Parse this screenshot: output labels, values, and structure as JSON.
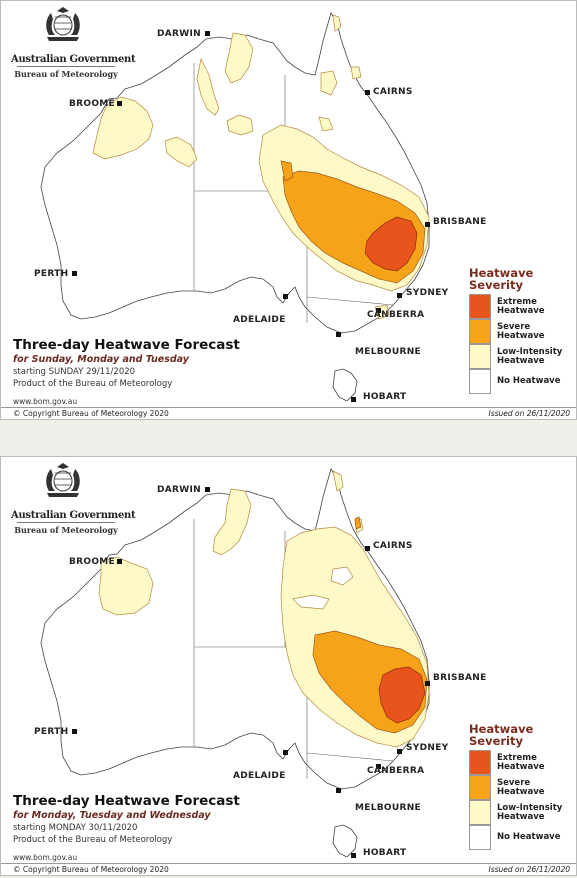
{
  "severity_colors": {
    "extreme": "#e8541c",
    "severe": "#f7a31a",
    "low": "#fdfac8",
    "none": "#ffffff"
  },
  "legend": {
    "title": "Heatwave Severity",
    "items": [
      {
        "key": "extreme",
        "label": "Extreme Heatwave",
        "color": "#e8541c"
      },
      {
        "key": "severe",
        "label": "Severe Heatwave",
        "color": "#f7a31a"
      },
      {
        "key": "low",
        "label": "Low-Intensity Heatwave",
        "color": "#fdfac8"
      },
      {
        "key": "none",
        "label": "No Heatwave",
        "color": "#ffffff"
      }
    ]
  },
  "branding": {
    "government": "Australian Government",
    "bureau": "Bureau of Meteorology",
    "crest_icon": "coat-of-arms-icon"
  },
  "cities": [
    "DARWIN",
    "CAIRNS",
    "BROOME",
    "BRISBANE",
    "PERTH",
    "SYDNEY",
    "ADELAIDE",
    "CANBERRA",
    "MELBOURNE",
    "HOBART"
  ],
  "panels": [
    {
      "title": "Three-day Heatwave Forecast",
      "subtitle": "for Sunday, Monday and Tuesday",
      "starting": "starting SUNDAY 29/11/2020",
      "product": "Product of the Bureau of Meteorology",
      "url": "www.bom.gov.au",
      "copyright": "© Copyright Bureau of Meteorology 2020",
      "issued": "Issued on 26/11/2020"
    },
    {
      "title": "Three-day Heatwave Forecast",
      "subtitle": "for Monday, Tuesday and Wednesday",
      "starting": "starting MONDAY 30/11/2020",
      "product": "Product of the Bureau of Meteorology",
      "url": "www.bom.gov.au",
      "copyright": "© Copyright Bureau of Meteorology 2020",
      "issued": "Issued on 26/11/2020"
    }
  ]
}
